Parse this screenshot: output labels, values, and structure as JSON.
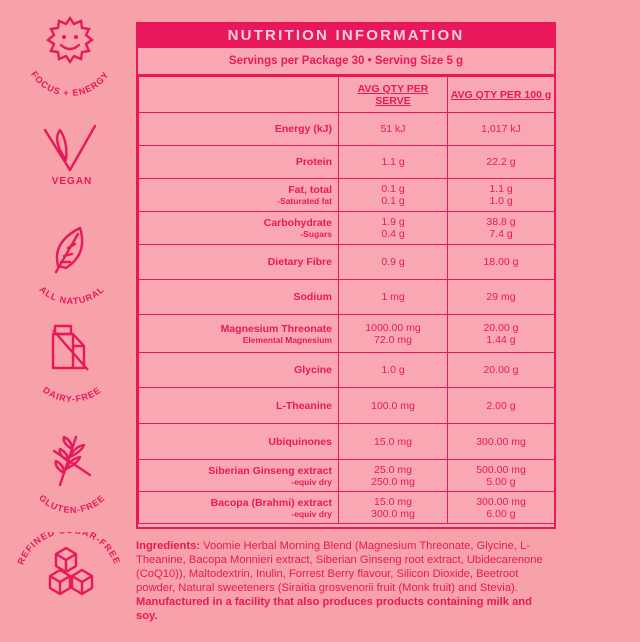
{
  "badges": [
    {
      "icon": "sun-smile-icon",
      "label": "FOCUS + ENERGY"
    },
    {
      "icon": "checkmark-leaf-icon",
      "label": "VEGAN"
    },
    {
      "icon": "leaf-icon",
      "label": "ALL NATURAL"
    },
    {
      "icon": "milk-carton-icon",
      "label": "DAIRY-FREE"
    },
    {
      "icon": "wheat-icon",
      "label": "GLUTEN-FREE"
    },
    {
      "icon": "sugar-cubes-icon",
      "label": "REFINED SUGAR-FREE"
    }
  ],
  "panel": {
    "title": "NUTRITION INFORMATION",
    "serving": "Servings per Package 30  •  Serving Size 5 g",
    "headers": {
      "serve": "AVG QTY PER SERVE",
      "per100": "AVG QTY PER 100 g"
    },
    "rows": [
      {
        "name": "Energy (kJ)",
        "serve": "51 kJ",
        "per100": "1,017 kJ"
      },
      {
        "name": "Protein",
        "serve": "1.1 g",
        "per100": "22.2 g"
      },
      {
        "name": "Fat, total",
        "sub": "-Saturated fat",
        "serve": "0.1 g",
        "serve2": "0.1 g",
        "per100": "1.1 g",
        "per1002": "1.0 g"
      },
      {
        "name": "Carbohydrate",
        "sub": "-Sugars",
        "serve": "1.9 g",
        "serve2": "0.4 g",
        "per100": "38.8 g",
        "per1002": "7.4 g"
      },
      {
        "name": "Dietary Fibre",
        "serve": "0.9  g",
        "per100": "18.00 g"
      },
      {
        "name": "Sodium",
        "serve": "1 mg",
        "per100": "29 mg"
      },
      {
        "name": "Magnesium Threonate",
        "sub": "Elemental Magnesium",
        "serve": "1000.00 mg",
        "serve2": "72.0 mg",
        "per100": "20.00 g",
        "per1002": "1.44 g"
      },
      {
        "name": "Glycine",
        "serve": "1.0 g",
        "per100": "20.00 g"
      },
      {
        "name": "L-Theanine",
        "serve": "100.0 mg",
        "per100": "2.00 g"
      },
      {
        "name": "Ubiquinones",
        "serve": "15.0 mg",
        "per100": "300.00 mg"
      },
      {
        "name": "Siberian Ginseng extract",
        "sub": "-equiv dry",
        "serve": "25.0 mg",
        "serve2": "250.0 mg",
        "per100": "500.00 mg",
        "per1002": "5.00 g"
      },
      {
        "name": "Bacopa (Brahmi) extract",
        "sub": "-equiv dry",
        "serve": "15.0 mg",
        "serve2": "300.0 mg",
        "per100": "300.00 mg",
        "per1002": "6.00 g"
      }
    ]
  },
  "ingredients": {
    "label": "Ingredients:",
    "text": " Voomie Herbal Morning Blend (Magnesium Threonate, Glycine, L-Theanine, Bacopa Monnieri extract, Siberian Ginseng root extract, Ubidecarenone (CoQ10)), Maltodextrin, Inulin, Forrest Berry flavour, Silicon Dioxide, Beetroot powder, Natural sweeteners (Siraitia grosvenorii fruit (Monk fruit) and Stevia). ",
    "warning": "Manufactured in a facility that also produces products containing milk and soy."
  },
  "colors": {
    "background": "#f7a1a9",
    "accent": "#e8185a"
  }
}
